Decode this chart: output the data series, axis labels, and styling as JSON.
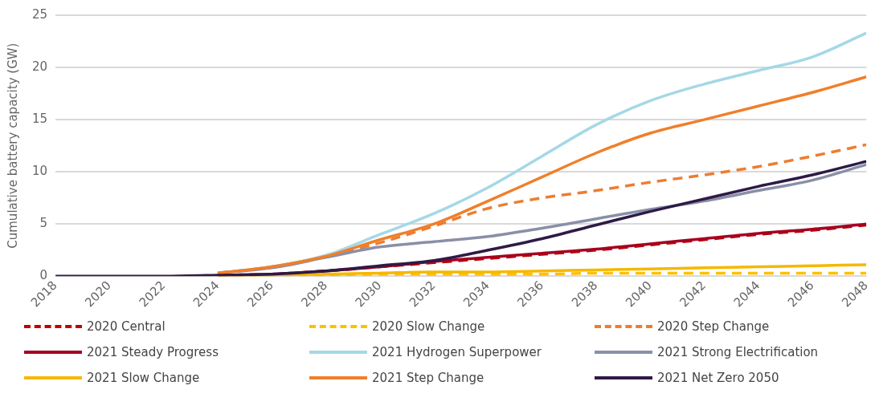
{
  "chart_data": {
    "type": "line",
    "ylabel": "Cumulative battery capacity (GW)",
    "x": [
      2018,
      2020,
      2022,
      2024,
      2026,
      2028,
      2030,
      2032,
      2034,
      2036,
      2038,
      2040,
      2042,
      2044,
      2046,
      2048
    ],
    "xlim": [
      2018,
      2048
    ],
    "xticks": [
      2018,
      2020,
      2022,
      2024,
      2026,
      2028,
      2030,
      2032,
      2034,
      2036,
      2038,
      2040,
      2042,
      2044,
      2046,
      2048
    ],
    "ylim": [
      0,
      25
    ],
    "yticks": [
      0,
      5,
      10,
      15,
      20,
      25
    ],
    "grid": "y",
    "legend": "bottom",
    "marker": "none",
    "series": [
      {
        "name": "2020 Central",
        "color": "#c00000",
        "line_style": "dashed",
        "values": [
          null,
          null,
          null,
          0.1,
          0.2,
          0.5,
          0.9,
          1.3,
          1.7,
          2.1,
          2.5,
          3.0,
          3.5,
          4.0,
          4.4,
          4.9
        ]
      },
      {
        "name": "2020 Slow Change",
        "color": "#ffc000",
        "line_style": "dashed",
        "values": [
          null,
          null,
          null,
          0,
          0.05,
          0.1,
          0.2,
          0.2,
          0.2,
          0.2,
          0.3,
          0.3,
          0.3,
          0.3,
          0.3,
          0.3
        ]
      },
      {
        "name": "2020 Step Change",
        "color": "#ed7d31",
        "line_style": "dashed",
        "values": [
          null,
          null,
          null,
          0.3,
          0.9,
          1.9,
          3.2,
          4.8,
          6.5,
          7.5,
          8.2,
          9.0,
          9.7,
          10.5,
          11.5,
          12.6
        ]
      },
      {
        "name": "2021 Steady Progress",
        "color": "#a50021",
        "line_style": "solid",
        "values": [
          null,
          null,
          null,
          0.1,
          0.2,
          0.5,
          0.9,
          1.4,
          1.8,
          2.2,
          2.6,
          3.1,
          3.6,
          4.1,
          4.5,
          5.0
        ]
      },
      {
        "name": "2021 Hydrogen Superpower",
        "color": "#a5d8e6",
        "line_style": "solid",
        "values": [
          null,
          null,
          null,
          0.3,
          0.9,
          2.0,
          4.0,
          6.0,
          8.5,
          11.5,
          14.5,
          16.8,
          18.4,
          19.7,
          21.0,
          23.3
        ]
      },
      {
        "name": "2021 Strong Electrification",
        "color": "#8a8fa8",
        "line_style": "solid",
        "values": [
          null,
          null,
          null,
          0.3,
          0.8,
          1.8,
          2.8,
          3.3,
          3.8,
          4.6,
          5.5,
          6.4,
          7.2,
          8.2,
          9.2,
          10.7
        ]
      },
      {
        "name": "2021 Slow Change",
        "color": "#f5b800",
        "line_style": "solid",
        "values": [
          null,
          null,
          null,
          0,
          0.1,
          0.2,
          0.3,
          0.4,
          0.4,
          0.5,
          0.6,
          0.7,
          0.8,
          0.9,
          1.0,
          1.1
        ]
      },
      {
        "name": "2021 Step Change",
        "color": "#f07f2a",
        "line_style": "solid",
        "values": [
          null,
          null,
          null,
          0.3,
          0.9,
          1.9,
          3.5,
          5.0,
          7.2,
          9.5,
          11.8,
          13.7,
          15.0,
          16.3,
          17.6,
          19.1
        ]
      },
      {
        "name": "2021 Net Zero 2050",
        "color": "#2e1a47",
        "line_style": "solid",
        "values": [
          0,
          0,
          0,
          0.1,
          0.2,
          0.5,
          1.0,
          1.5,
          2.5,
          3.6,
          4.9,
          6.2,
          7.4,
          8.6,
          9.7,
          11.0
        ]
      }
    ]
  }
}
